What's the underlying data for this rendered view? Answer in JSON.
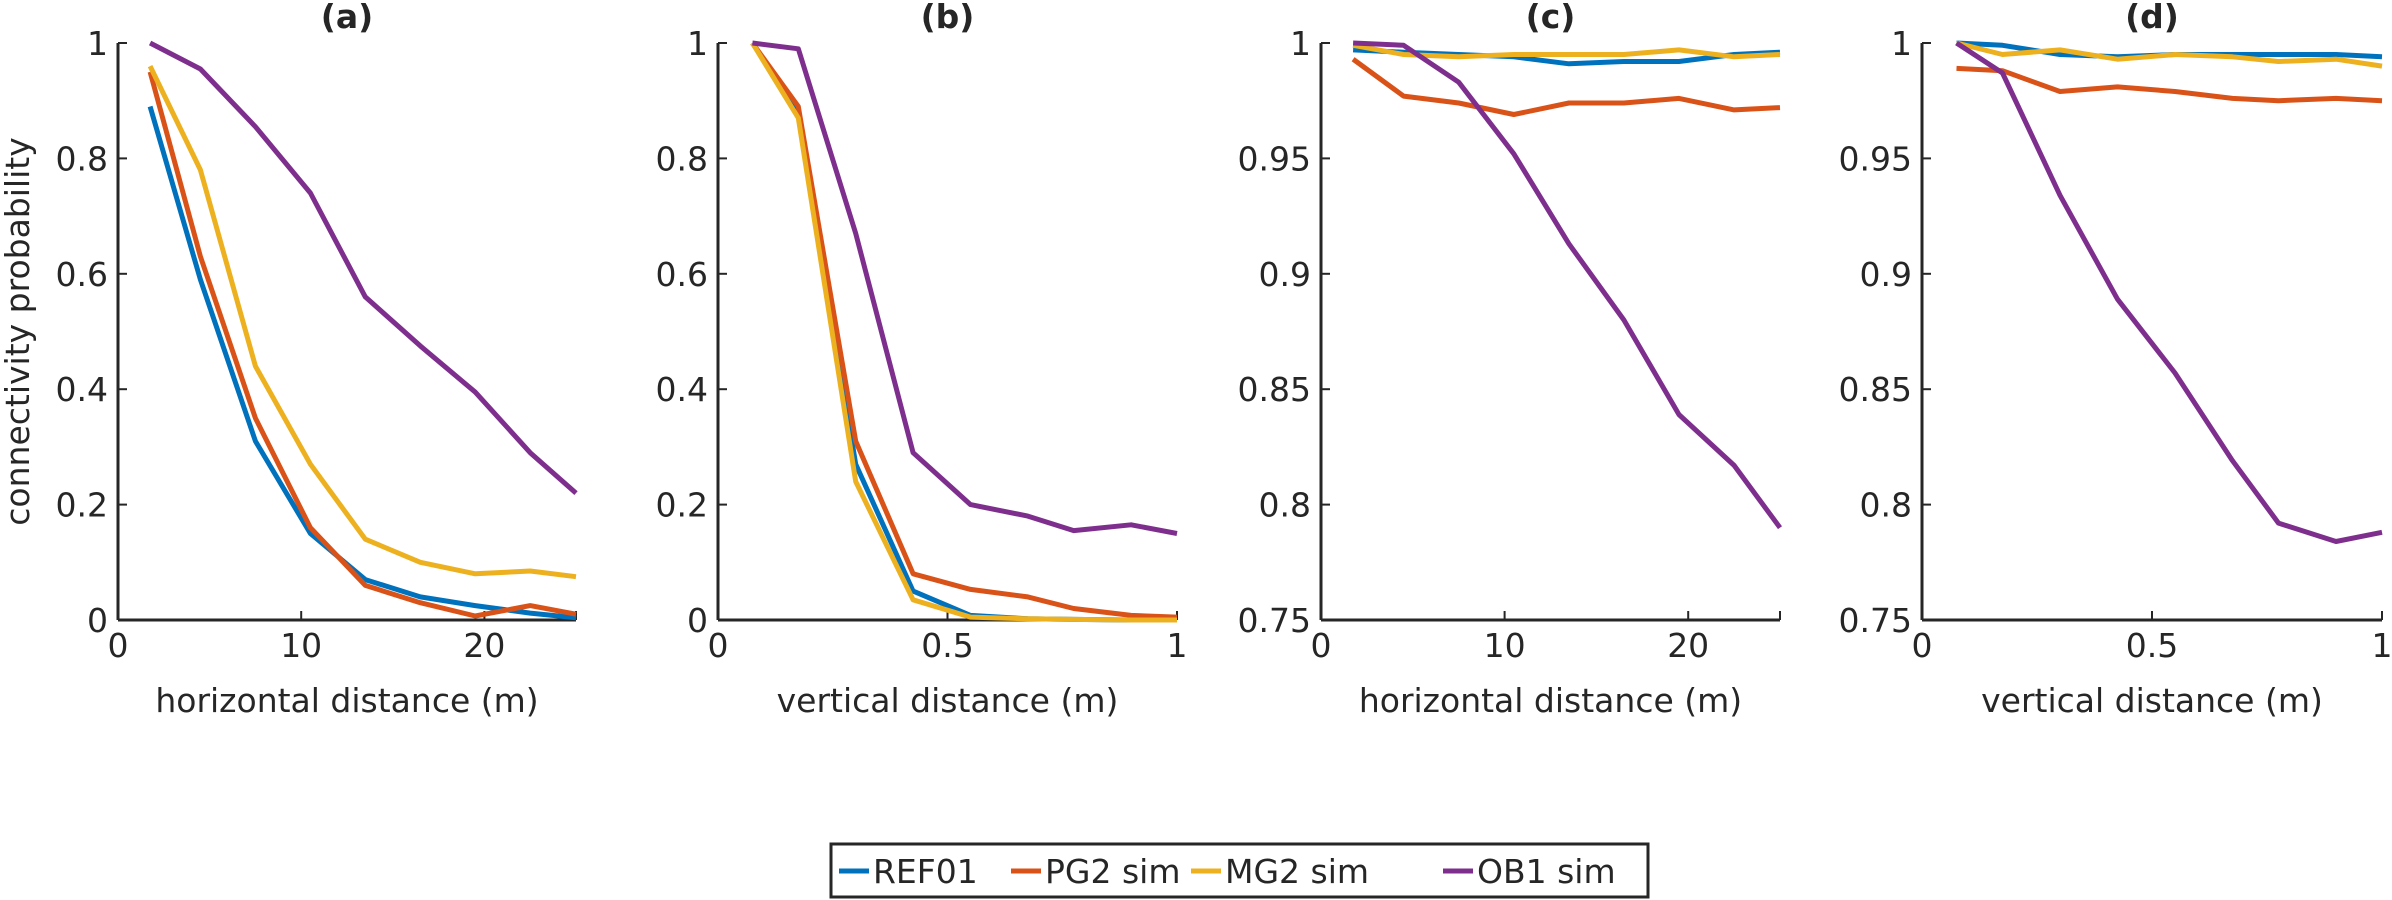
{
  "chart_data": [
    {
      "type": "line",
      "title": "(a)",
      "xlabel": "horizontal distance (m)",
      "ylabel": "connectivity probability",
      "xlim": [
        0,
        25
      ],
      "ylim": [
        0,
        1
      ],
      "xticks": [
        0,
        10,
        20
      ],
      "xtick_labels": [
        "0",
        "10",
        "20"
      ],
      "yticks": [
        0,
        0.2,
        0.4,
        0.6,
        0.8,
        1
      ],
      "ytick_labels": [
        "0",
        "0.2",
        "0.4",
        "0.6",
        "0.8",
        "1"
      ],
      "x": [
        1.75,
        4.5,
        7.5,
        10.5,
        13.5,
        16.5,
        19.5,
        22.5,
        25
      ],
      "series": [
        {
          "name": "REF01",
          "values": [
            0.89,
            0.59,
            0.31,
            0.15,
            0.07,
            0.04,
            0.025,
            0.012,
            0.004
          ]
        },
        {
          "name": "PG2 sim",
          "values": [
            0.95,
            0.63,
            0.35,
            0.16,
            0.06,
            0.03,
            0.007,
            0.025,
            0.01
          ]
        },
        {
          "name": "MG2 sim",
          "values": [
            0.96,
            0.78,
            0.44,
            0.27,
            0.14,
            0.1,
            0.08,
            0.085,
            0.075
          ]
        },
        {
          "name": "OB1 sim",
          "values": [
            1.0,
            0.955,
            0.855,
            0.74,
            0.56,
            0.475,
            0.395,
            0.29,
            0.22
          ]
        }
      ]
    },
    {
      "type": "line",
      "title": "(b)",
      "xlabel": "vertical distance (m)",
      "ylabel": "",
      "xlim": [
        0,
        1
      ],
      "ylim": [
        0,
        1
      ],
      "xticks": [
        0,
        0.5,
        1
      ],
      "xtick_labels": [
        "0",
        "0.5",
        "1"
      ],
      "yticks": [
        0,
        0.2,
        0.4,
        0.6,
        0.8,
        1
      ],
      "ytick_labels": [
        "0",
        "0.2",
        "0.4",
        "0.6",
        "0.8",
        "1"
      ],
      "x": [
        0.075,
        0.175,
        0.3,
        0.425,
        0.55,
        0.675,
        0.775,
        0.9,
        1.0
      ],
      "series": [
        {
          "name": "REF01",
          "values": [
            1.0,
            0.88,
            0.27,
            0.05,
            0.008,
            0.002,
            0.001,
            0.0,
            0.0
          ]
        },
        {
          "name": "PG2 sim",
          "values": [
            1.0,
            0.89,
            0.31,
            0.08,
            0.053,
            0.04,
            0.02,
            0.008,
            0.005
          ]
        },
        {
          "name": "MG2 sim",
          "values": [
            1.0,
            0.87,
            0.24,
            0.035,
            0.005,
            0.002,
            0.001,
            0.0,
            0.0
          ]
        },
        {
          "name": "OB1 sim",
          "values": [
            1.0,
            0.99,
            0.67,
            0.29,
            0.2,
            0.18,
            0.155,
            0.165,
            0.15
          ]
        }
      ]
    },
    {
      "type": "line",
      "title": "(c)",
      "xlabel": "horizontal distance (m)",
      "ylabel": "",
      "xlim": [
        0,
        25
      ],
      "ylim": [
        0.75,
        1
      ],
      "xticks": [
        0,
        10,
        20
      ],
      "xtick_labels": [
        "0",
        "10",
        "20"
      ],
      "yticks": [
        0.75,
        0.8,
        0.85,
        0.9,
        0.95,
        1
      ],
      "ytick_labels": [
        "0.75",
        "0.8",
        "0.85",
        "0.9",
        "0.95",
        "1"
      ],
      "x": [
        1.75,
        4.5,
        7.5,
        10.5,
        13.5,
        16.5,
        19.5,
        22.5,
        25
      ],
      "series": [
        {
          "name": "REF01",
          "values": [
            0.997,
            0.996,
            0.995,
            0.994,
            0.991,
            0.992,
            0.992,
            0.995,
            0.996
          ]
        },
        {
          "name": "PG2 sim",
          "values": [
            0.993,
            0.977,
            0.974,
            0.969,
            0.974,
            0.974,
            0.976,
            0.971,
            0.972
          ]
        },
        {
          "name": "MG2 sim",
          "values": [
            0.999,
            0.995,
            0.994,
            0.995,
            0.995,
            0.995,
            0.997,
            0.994,
            0.995
          ]
        },
        {
          "name": "OB1 sim",
          "values": [
            1.0,
            0.999,
            0.983,
            0.952,
            0.913,
            0.88,
            0.839,
            0.817,
            0.79
          ]
        }
      ]
    },
    {
      "type": "line",
      "title": "(d)",
      "xlabel": "vertical distance (m)",
      "ylabel": "",
      "xlim": [
        0,
        1
      ],
      "ylim": [
        0.75,
        1
      ],
      "xticks": [
        0,
        0.5,
        1
      ],
      "xtick_labels": [
        "0",
        "0.5",
        "1"
      ],
      "yticks": [
        0.75,
        0.8,
        0.85,
        0.9,
        0.95,
        1
      ],
      "ytick_labels": [
        "0.75",
        "0.8",
        "0.85",
        "0.9",
        "0.95",
        "1"
      ],
      "x": [
        0.075,
        0.175,
        0.3,
        0.425,
        0.55,
        0.675,
        0.775,
        0.9,
        1.0
      ],
      "series": [
        {
          "name": "REF01",
          "values": [
            1.0,
            0.999,
            0.995,
            0.994,
            0.995,
            0.995,
            0.995,
            0.995,
            0.994
          ]
        },
        {
          "name": "PG2 sim",
          "values": [
            0.989,
            0.988,
            0.979,
            0.981,
            0.979,
            0.976,
            0.975,
            0.976,
            0.975
          ]
        },
        {
          "name": "MG2 sim",
          "values": [
            1.0,
            0.995,
            0.997,
            0.993,
            0.995,
            0.994,
            0.992,
            0.993,
            0.99
          ]
        },
        {
          "name": "OB1 sim",
          "values": [
            1.0,
            0.987,
            0.934,
            0.889,
            0.857,
            0.819,
            0.792,
            0.784,
            0.788
          ]
        }
      ]
    }
  ],
  "legend": {
    "placement": "bottom-center",
    "entries": [
      {
        "name": "REF01",
        "color": "#0072BD"
      },
      {
        "name": "PG2 sim",
        "color": "#D95319"
      },
      {
        "name": "MG2 sim",
        "color": "#EDB120"
      },
      {
        "name": "OB1 sim",
        "color": "#7E2F8E"
      }
    ]
  }
}
